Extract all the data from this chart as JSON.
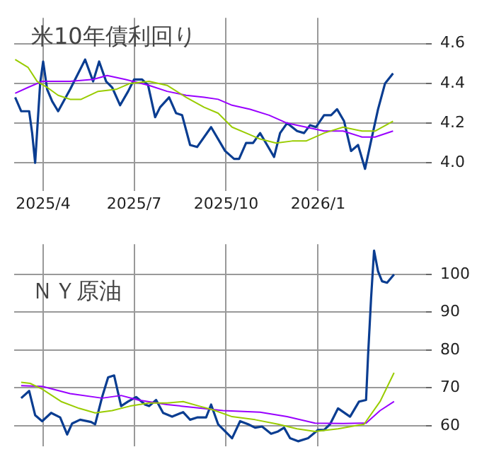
{
  "chart_data": [
    {
      "type": "line",
      "title": "米10年債利回り",
      "xlim": [
        "2025-03-03",
        "2026-04-19"
      ],
      "ylim": [
        3.86,
        4.73
      ],
      "xticks": [
        {
          "value": "2025-04-01",
          "label": "2025/4"
        },
        {
          "value": "2025-07-01",
          "label": "2025/7"
        },
        {
          "value": "2025-10-01",
          "label": "2025/10"
        },
        {
          "value": "2026-01-01",
          "label": "2026/1"
        }
      ],
      "yticks": [
        {
          "value": 4.0,
          "label": "4.0"
        },
        {
          "value": 4.2,
          "label": "4.2"
        },
        {
          "value": 4.4,
          "label": "4.4"
        },
        {
          "value": 4.6,
          "label": "4.6"
        }
      ],
      "grid": true,
      "legend": false,
      "marker": "none",
      "line_style": "solid",
      "series": [
        {
          "color": "#99cc00",
          "x": [
            "2025-03-04",
            "2025-03-17",
            "2025-03-26",
            "2025-04-05",
            "2025-04-16",
            "2025-04-28",
            "2025-05-09",
            "2025-05-26",
            "2025-06-13",
            "2025-06-27",
            "2025-07-16",
            "2025-08-03",
            "2025-08-22",
            "2025-09-09",
            "2025-09-23",
            "2025-10-07",
            "2025-10-21",
            "2025-11-04",
            "2025-11-20",
            "2025-12-06",
            "2025-12-20",
            "2026-01-07",
            "2026-01-26",
            "2026-02-14",
            "2026-02-27",
            "2026-03-17"
          ],
          "values": [
            4.52,
            4.48,
            4.41,
            4.38,
            4.34,
            4.32,
            4.32,
            4.36,
            4.37,
            4.4,
            4.41,
            4.39,
            4.33,
            4.28,
            4.25,
            4.18,
            4.15,
            4.12,
            4.1,
            4.11,
            4.11,
            4.15,
            4.18,
            4.16,
            4.16,
            4.21
          ]
        },
        {
          "color": "#9900ff",
          "x": [
            "2025-03-04",
            "2025-03-17",
            "2025-03-31",
            "2025-04-28",
            "2025-05-21",
            "2025-06-04",
            "2025-06-22",
            "2025-07-16",
            "2025-08-03",
            "2025-08-22",
            "2025-09-09",
            "2025-09-23",
            "2025-10-07",
            "2025-10-25",
            "2025-11-13",
            "2025-12-01",
            "2025-12-20",
            "2026-01-07",
            "2026-01-26",
            "2026-02-14",
            "2026-02-27",
            "2026-03-17"
          ],
          "values": [
            4.35,
            4.38,
            4.41,
            4.41,
            4.42,
            4.44,
            4.42,
            4.39,
            4.36,
            4.34,
            4.33,
            4.32,
            4.29,
            4.27,
            4.24,
            4.2,
            4.18,
            4.16,
            4.16,
            4.13,
            4.13,
            4.16
          ]
        },
        {
          "color": "#0a3d91",
          "x": [
            "2025-03-04",
            "2025-03-10",
            "2025-03-15",
            "2025-03-18",
            "2025-03-21",
            "2025-03-24",
            "2025-03-26",
            "2025-03-29",
            "2025-04-01",
            "2025-04-05",
            "2025-04-10",
            "2025-04-16",
            "2025-04-28",
            "2025-05-13",
            "2025-05-21",
            "2025-05-27",
            "2025-06-03",
            "2025-06-09",
            "2025-06-17",
            "2025-06-25",
            "2025-07-01",
            "2025-07-09",
            "2025-07-15",
            "2025-07-22",
            "2025-07-27",
            "2025-08-05",
            "2025-08-12",
            "2025-08-18",
            "2025-08-26",
            "2025-09-02",
            "2025-09-16",
            "2025-09-30",
            "2025-10-09",
            "2025-10-14",
            "2025-10-21",
            "2025-10-28",
            "2025-11-04",
            "2025-11-11",
            "2025-11-18",
            "2025-11-24",
            "2025-12-01",
            "2025-12-11",
            "2025-12-18",
            "2025-12-24",
            "2025-12-30",
            "2026-01-07",
            "2026-01-14",
            "2026-01-20",
            "2026-01-27",
            "2026-02-03",
            "2026-02-10",
            "2026-02-17",
            "2026-02-23",
            "2026-03-02",
            "2026-03-09",
            "2026-03-17"
          ],
          "values": [
            4.33,
            4.26,
            4.26,
            4.26,
            4.15,
            4.0,
            4.16,
            4.4,
            4.51,
            4.37,
            4.31,
            4.26,
            4.37,
            4.52,
            4.41,
            4.51,
            4.41,
            4.38,
            4.29,
            4.36,
            4.42,
            4.42,
            4.39,
            4.23,
            4.28,
            4.33,
            4.25,
            4.24,
            4.09,
            4.08,
            4.18,
            4.06,
            4.02,
            4.02,
            4.1,
            4.1,
            4.15,
            4.09,
            4.03,
            4.15,
            4.2,
            4.16,
            4.15,
            4.19,
            4.18,
            4.24,
            4.24,
            4.27,
            4.21,
            4.06,
            4.09,
            3.97,
            4.11,
            4.27,
            4.4,
            4.45
          ]
        }
      ]
    },
    {
      "type": "line",
      "title": "ＮＹ原油",
      "xlim": [
        "2025-03-03",
        "2026-04-19"
      ],
      "ylim": [
        54.6,
        108
      ],
      "xticks": [
        {
          "value": "2025-04-01",
          "label": null
        },
        {
          "value": "2025-07-01",
          "label": null
        },
        {
          "value": "2025-10-01",
          "label": null
        },
        {
          "value": "2026-01-01",
          "label": null
        }
      ],
      "yticks": [
        60,
        70,
        80,
        90,
        100
      ],
      "tick_labels": "y",
      "grid": true,
      "legend": false,
      "marker": "none",
      "line_style": "solid",
      "series": [
        {
          "color": "#99cc00",
          "x": [
            "2025-03-10",
            "2025-03-19",
            "2025-03-31",
            "2025-04-19",
            "2025-05-07",
            "2025-05-23",
            "2025-06-09",
            "2025-06-27",
            "2025-07-16",
            "2025-08-03",
            "2025-08-19",
            "2025-09-04",
            "2025-09-18",
            "2025-10-07",
            "2025-10-30",
            "2025-11-22",
            "2025-12-11",
            "2025-12-29",
            "2026-01-21",
            "2026-02-16",
            "2026-03-04",
            "2026-03-18"
          ],
          "values": [
            71.5,
            71.2,
            69.7,
            66.4,
            64.6,
            63.4,
            64.0,
            65.2,
            66.0,
            66.0,
            66.4,
            65.2,
            64.2,
            62.4,
            61.6,
            60.4,
            59.2,
            58.5,
            59.2,
            60.4,
            66.4,
            74.0
          ]
        },
        {
          "color": "#9900ff",
          "x": [
            "2025-03-10",
            "2025-03-31",
            "2025-04-28",
            "2025-05-30",
            "2025-06-18",
            "2025-07-05",
            "2025-08-03",
            "2025-08-31",
            "2025-09-28",
            "2025-11-04",
            "2025-12-01",
            "2025-12-29",
            "2026-01-26",
            "2026-02-18",
            "2026-03-04",
            "2026-03-18"
          ],
          "values": [
            70.6,
            70.4,
            68.5,
            67.3,
            68.0,
            66.8,
            65.6,
            64.8,
            64.0,
            63.6,
            62.4,
            60.7,
            60.6,
            60.7,
            64.0,
            66.4
          ]
        },
        {
          "color": "#0a3d91",
          "x": [
            "2025-03-10",
            "2025-03-18",
            "2025-03-24",
            "2025-03-31",
            "2025-04-09",
            "2025-04-18",
            "2025-04-25",
            "2025-04-30",
            "2025-05-08",
            "2025-05-19",
            "2025-05-23",
            "2025-05-30",
            "2025-06-05",
            "2025-06-11",
            "2025-06-18",
            "2025-06-25",
            "2025-07-03",
            "2025-07-12",
            "2025-07-16",
            "2025-07-23",
            "2025-07-30",
            "2025-08-08",
            "2025-08-19",
            "2025-08-26",
            "2025-09-02",
            "2025-09-11",
            "2025-09-16",
            "2025-09-23",
            "2025-10-07",
            "2025-10-15",
            "2025-10-23",
            "2025-10-30",
            "2025-11-06",
            "2025-11-15",
            "2025-11-22",
            "2025-11-28",
            "2025-12-04",
            "2025-12-12",
            "2025-12-22",
            "2026-01-01",
            "2026-01-07",
            "2026-01-13",
            "2026-01-21",
            "2026-02-02",
            "2026-02-11",
            "2026-02-18",
            "2026-02-20",
            "2026-02-23",
            "2026-02-26",
            "2026-03-02",
            "2026-03-06",
            "2026-03-11",
            "2026-03-18"
          ],
          "values": [
            67.3,
            69.2,
            62.8,
            61.2,
            63.4,
            62.2,
            57.7,
            60.6,
            61.6,
            61.0,
            60.4,
            67.6,
            72.8,
            73.3,
            65.2,
            66.4,
            67.6,
            65.6,
            65.2,
            66.8,
            63.4,
            62.4,
            63.6,
            61.6,
            62.2,
            62.2,
            65.6,
            60.4,
            56.7,
            61.2,
            60.4,
            59.5,
            59.8,
            57.9,
            58.5,
            59.5,
            56.7,
            55.9,
            56.7,
            58.9,
            58.9,
            60.4,
            64.6,
            62.4,
            66.4,
            66.8,
            78.5,
            93.6,
            106.3,
            100.8,
            98.2,
            97.8,
            100.0
          ]
        }
      ]
    }
  ]
}
